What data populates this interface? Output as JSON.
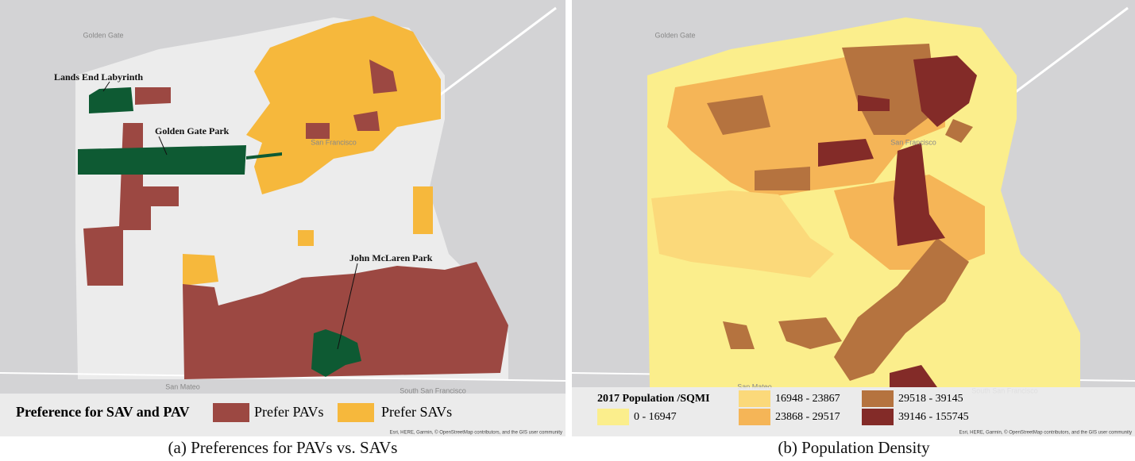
{
  "panels": [
    {
      "caption": "(a) Preferences for PAVs vs. SAVs",
      "map_labels": [
        "Golden Gate",
        "San Francisco",
        "San Mateo",
        "South San Francisco"
      ],
      "annotations": [
        "Lands End Labyrinth",
        "Golden Gate Park",
        "John McLaren Park"
      ],
      "legend": {
        "title": "Preference for SAV and PAV",
        "items": [
          {
            "label": "Prefer PAVs",
            "color": "#9c4842"
          },
          {
            "label": "Prefer SAVs",
            "color": "#f6b83c"
          }
        ]
      },
      "attribution": "Esri, HERE, Garmin, © OpenStreetMap contributors, and the GIS user community"
    },
    {
      "caption": "(b) Population Density",
      "map_labels": [
        "Golden Gate",
        "San Francisco",
        "San Mateo",
        "South San Francisco"
      ],
      "legend": {
        "title": "2017 Population /SQMI",
        "items": [
          {
            "label": "0 - 16947",
            "color": "#fbee8c"
          },
          {
            "label": "16948 - 23867",
            "color": "#fbd97a"
          },
          {
            "label": "23868 - 29517",
            "color": "#f5b557"
          },
          {
            "label": "29518 - 39145",
            "color": "#b5733f"
          },
          {
            "label": "39146 - 155745",
            "color": "#832b28"
          }
        ]
      },
      "attribution": "Esri, HERE, Garmin, © OpenStreetMap contributors, and the GIS user community"
    }
  ]
}
